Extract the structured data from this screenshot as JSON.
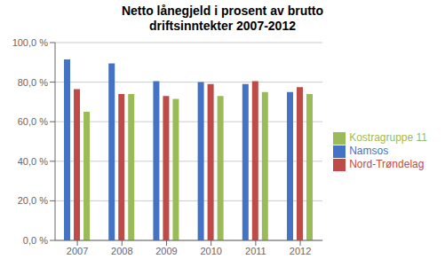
{
  "chart_data": {
    "type": "bar",
    "title": "Netto lånegjeld i prosent av brutto\ndriftsinntekter 2007-2012",
    "categories": [
      "2007",
      "2008",
      "2009",
      "2010",
      "2011",
      "2012"
    ],
    "series": [
      {
        "name": "Namsos",
        "color": "#4472C4",
        "values": [
          91.5,
          89.5,
          80.5,
          80.0,
          79.0,
          75.0
        ]
      },
      {
        "name": "Nord-Trøndelag",
        "color": "#BE4B48",
        "values": [
          76.5,
          74.0,
          73.0,
          79.0,
          80.5,
          77.5
        ]
      },
      {
        "name": "Kostragruppe 11",
        "color": "#9BBB59",
        "values": [
          65.0,
          74.0,
          71.5,
          73.0,
          75.0,
          74.0
        ]
      }
    ],
    "ylim": [
      0,
      100
    ],
    "yticks": [
      {
        "value": 0,
        "label": "0,0 %"
      },
      {
        "value": 20,
        "label": "20,0 %"
      },
      {
        "value": 40,
        "label": "40,0 %"
      },
      {
        "value": 60,
        "label": "60,0 %"
      },
      {
        "value": 80,
        "label": "80,0 %"
      },
      {
        "value": 100,
        "label": "100,0 %"
      }
    ],
    "grid": true,
    "legend": "right"
  }
}
